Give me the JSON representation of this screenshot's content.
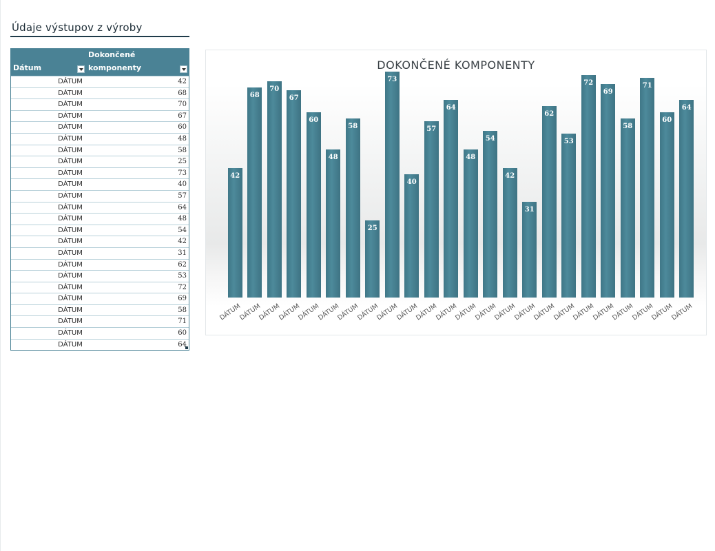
{
  "sheet": {
    "title": "Údaje výstupov z výroby"
  },
  "table": {
    "col_date_header": "Dátum",
    "col_comp_header_line1": "Dokončené",
    "col_comp_header_line2": "komponenty",
    "rows": [
      {
        "date": "DÁTUM",
        "value": "42"
      },
      {
        "date": "DÁTUM",
        "value": "68"
      },
      {
        "date": "DÁTUM",
        "value": "70"
      },
      {
        "date": "DÁTUM",
        "value": "67"
      },
      {
        "date": "DÁTUM",
        "value": "60"
      },
      {
        "date": "DÁTUM",
        "value": "48"
      },
      {
        "date": "DÁTUM",
        "value": "58"
      },
      {
        "date": "DÁTUM",
        "value": "25"
      },
      {
        "date": "DÁTUM",
        "value": "73"
      },
      {
        "date": "DÁTUM",
        "value": "40"
      },
      {
        "date": "DÁTUM",
        "value": "57"
      },
      {
        "date": "DÁTUM",
        "value": "64"
      },
      {
        "date": "DÁTUM",
        "value": "48"
      },
      {
        "date": "DÁTUM",
        "value": "54"
      },
      {
        "date": "DÁTUM",
        "value": "42"
      },
      {
        "date": "DÁTUM",
        "value": "31"
      },
      {
        "date": "DÁTUM",
        "value": "62"
      },
      {
        "date": "DÁTUM",
        "value": "53"
      },
      {
        "date": "DÁTUM",
        "value": "72"
      },
      {
        "date": "DÁTUM",
        "value": "69"
      },
      {
        "date": "DÁTUM",
        "value": "58"
      },
      {
        "date": "DÁTUM",
        "value": "71"
      },
      {
        "date": "DÁTUM",
        "value": "60"
      },
      {
        "date": "DÁTUM",
        "value": "64"
      }
    ]
  },
  "colors": {
    "accent": "#4a8295",
    "bar": "#45808f"
  },
  "chart_data": {
    "type": "bar",
    "title": "DOKONČENÉ KOMPONENTY",
    "categories": [
      "DÁTUM",
      "DÁTUM",
      "DÁTUM",
      "DÁTUM",
      "DÁTUM",
      "DÁTUM",
      "DÁTUM",
      "DÁTUM",
      "DÁTUM",
      "DÁTUM",
      "DÁTUM",
      "DÁTUM",
      "DÁTUM",
      "DÁTUM",
      "DÁTUM",
      "DÁTUM",
      "DÁTUM",
      "DÁTUM",
      "DÁTUM",
      "DÁTUM",
      "DÁTUM",
      "DÁTUM",
      "DÁTUM",
      "DÁTUM"
    ],
    "values": [
      42,
      68,
      70,
      67,
      60,
      48,
      58,
      25,
      73,
      40,
      57,
      64,
      48,
      54,
      42,
      31,
      62,
      53,
      72,
      69,
      58,
      71,
      60,
      64
    ],
    "ylim": [
      0,
      80
    ],
    "xlabel": "",
    "ylabel": ""
  }
}
